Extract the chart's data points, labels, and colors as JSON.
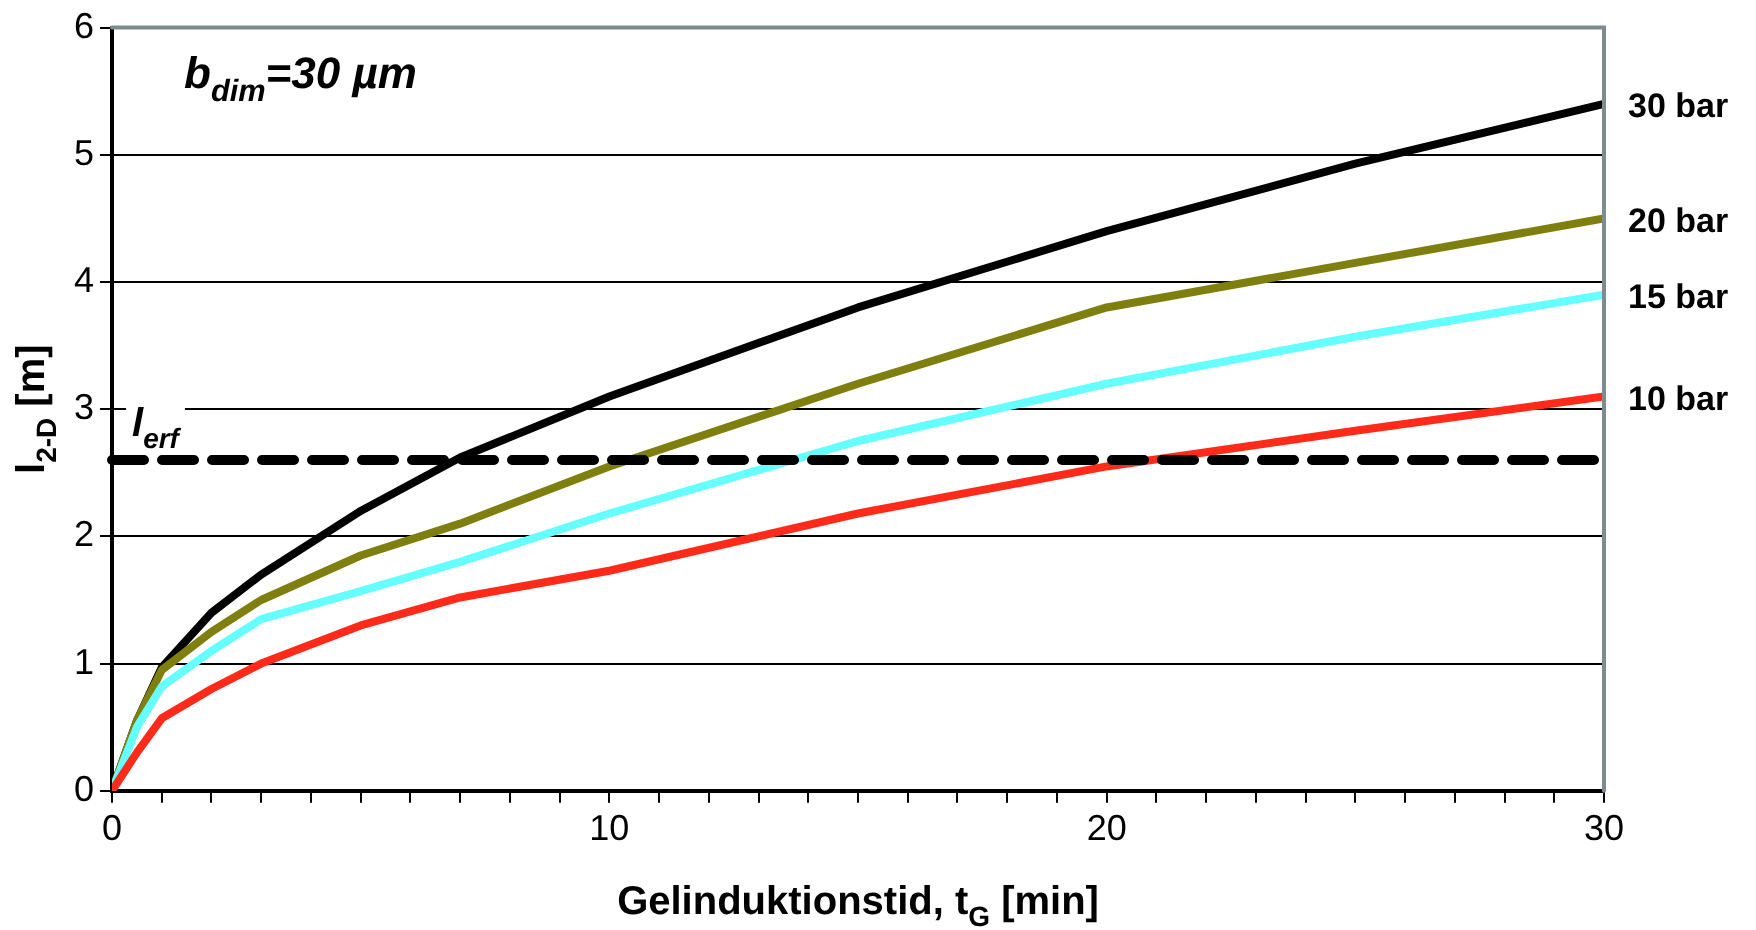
{
  "chart_data": {
    "type": "line",
    "xlabel": "Gelinduktionstid, t$_{G}$ [min]",
    "ylabel": "l$_{2-D}$ [m]",
    "annotations": [
      "b$_{dim}$=30 µm"
    ],
    "x": [
      0,
      0.5,
      1,
      2,
      3,
      5,
      7,
      10,
      15,
      20,
      25,
      30
    ],
    "series": [
      {
        "name": "30 bar",
        "color": "#000000",
        "values": [
          0,
          0.55,
          0.97,
          1.4,
          1.7,
          2.2,
          2.62,
          3.1,
          3.8,
          4.4,
          4.93,
          5.4
        ]
      },
      {
        "name": "20 bar",
        "color": "#7f7f0f",
        "values": [
          0,
          0.55,
          0.95,
          1.25,
          1.5,
          1.85,
          2.1,
          2.55,
          3.2,
          3.8,
          4.15,
          4.5
        ]
      },
      {
        "name": "15 bar",
        "color": "#66ffff",
        "values": [
          0,
          0.5,
          0.82,
          1.1,
          1.35,
          1.57,
          1.8,
          2.18,
          2.75,
          3.2,
          3.57,
          3.9
        ]
      },
      {
        "name": "10 bar",
        "color": "#ff2a1a",
        "values": [
          0,
          0.3,
          0.57,
          0.8,
          1.0,
          1.3,
          1.52,
          1.73,
          2.18,
          2.55,
          2.83,
          3.1
        ]
      }
    ],
    "ref_lines": [
      {
        "axis": "y",
        "value": 2.6,
        "label": "l$_{erf}$",
        "color": "#000000",
        "line_style": "dashed"
      }
    ],
    "xlim": [
      0,
      30
    ],
    "xticks": [
      0,
      {
        "value": 1,
        "label": null
      },
      {
        "value": 2,
        "label": null
      },
      {
        "value": 3,
        "label": null
      },
      {
        "value": 4,
        "label": null
      },
      {
        "value": 5,
        "label": null
      },
      {
        "value": 6,
        "label": null
      },
      {
        "value": 7,
        "label": null
      },
      {
        "value": 8,
        "label": null
      },
      {
        "value": 9,
        "label": null
      },
      10,
      {
        "value": 11,
        "label": null
      },
      {
        "value": 12,
        "label": null
      },
      {
        "value": 13,
        "label": null
      },
      {
        "value": 14,
        "label": null
      },
      {
        "value": 15,
        "label": null
      },
      {
        "value": 16,
        "label": null
      },
      {
        "value": 17,
        "label": null
      },
      {
        "value": 18,
        "label": null
      },
      {
        "value": 19,
        "label": null
      },
      20,
      {
        "value": 21,
        "label": null
      },
      {
        "value": 22,
        "label": null
      },
      {
        "value": 23,
        "label": null
      },
      {
        "value": 24,
        "label": null
      },
      {
        "value": 25,
        "label": null
      },
      {
        "value": 26,
        "label": null
      },
      {
        "value": 27,
        "label": null
      },
      {
        "value": 28,
        "label": null
      },
      {
        "value": 29,
        "label": null
      },
      30
    ],
    "ylim": [
      0,
      6
    ],
    "yticks": [
      0,
      1,
      2,
      3,
      4,
      5,
      6
    ],
    "grid": "y",
    "legend": false,
    "marker": "none",
    "line_style": "solid"
  }
}
